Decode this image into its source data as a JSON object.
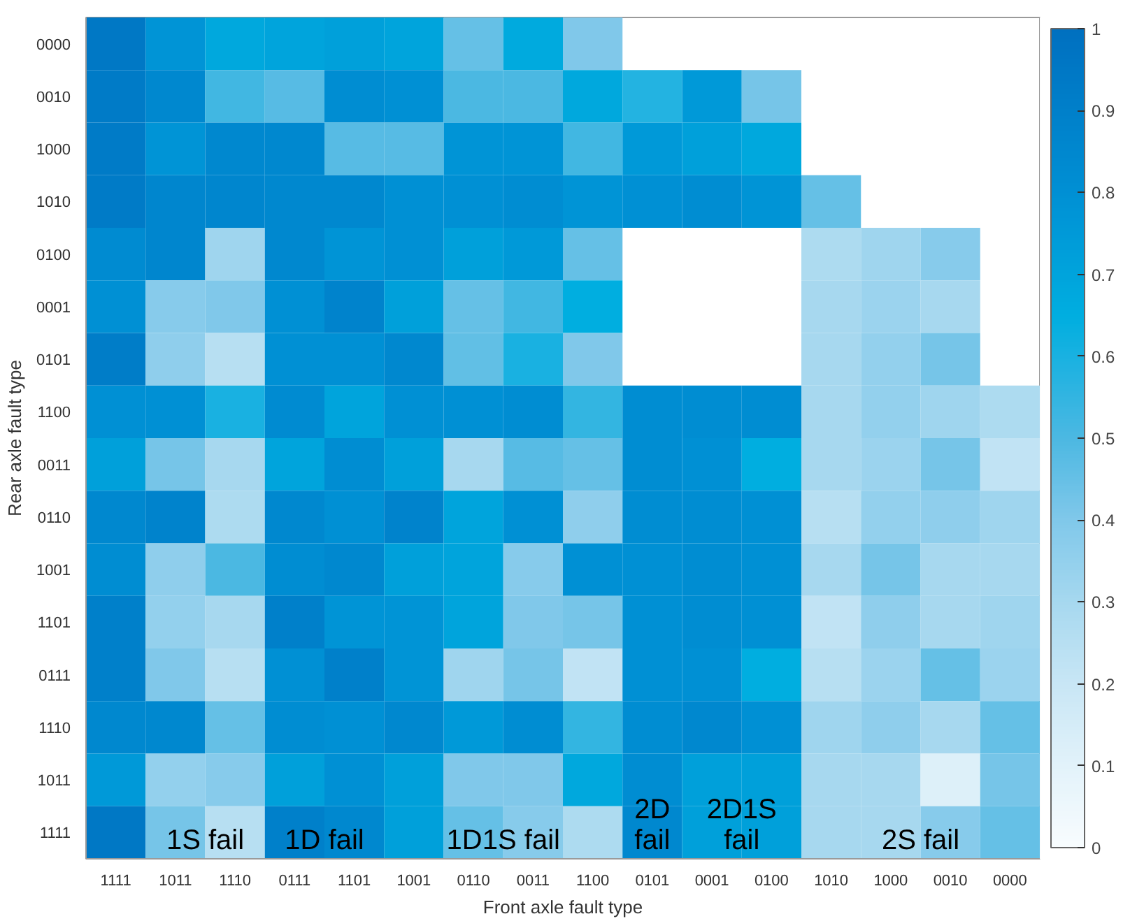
{
  "chart_data": {
    "type": "heatmap",
    "xlabel": "Front axle fault type",
    "ylabel": "Rear axle fault type",
    "categories": [
      "1111",
      "1011",
      "1110",
      "0111",
      "1101",
      "1001",
      "0110",
      "0011",
      "1100",
      "0101",
      "0001",
      "0100",
      "1010",
      "1000",
      "0010",
      "0000"
    ],
    "y_categories": [
      "0000",
      "0010",
      "1000",
      "1010",
      "0100",
      "0001",
      "0101",
      "1100",
      "0011",
      "0110",
      "1001",
      "1101",
      "0111",
      "1110",
      "1011",
      "1111"
    ],
    "cells": [
      [
        0.95,
        0.78,
        0.68,
        0.7,
        0.72,
        0.7,
        0.45,
        0.67,
        0.4,
        null,
        null,
        null,
        null,
        null,
        null,
        null
      ],
      [
        0.93,
        0.85,
        0.52,
        0.48,
        0.82,
        0.8,
        0.5,
        0.5,
        0.68,
        0.58,
        0.75,
        0.42,
        null,
        null,
        null,
        null
      ],
      [
        0.93,
        0.78,
        0.85,
        0.85,
        0.48,
        0.48,
        0.78,
        0.78,
        0.52,
        0.75,
        0.72,
        0.68,
        null,
        null,
        null,
        null
      ],
      [
        0.93,
        0.86,
        0.86,
        0.85,
        0.85,
        0.8,
        0.8,
        0.82,
        0.78,
        0.8,
        0.82,
        0.78,
        0.45,
        null,
        null,
        null
      ],
      [
        0.83,
        0.86,
        0.32,
        0.85,
        0.78,
        0.8,
        0.72,
        0.75,
        0.45,
        null,
        null,
        null,
        0.28,
        0.32,
        0.38,
        null
      ],
      [
        0.8,
        0.38,
        0.4,
        0.8,
        0.88,
        0.72,
        0.45,
        0.52,
        0.65,
        null,
        null,
        null,
        0.3,
        0.33,
        0.3,
        null
      ],
      [
        0.92,
        0.36,
        0.25,
        0.8,
        0.8,
        0.85,
        0.46,
        0.6,
        0.4,
        null,
        null,
        null,
        0.3,
        0.35,
        0.42,
        null
      ],
      [
        0.8,
        0.8,
        0.6,
        0.83,
        0.7,
        0.8,
        0.8,
        0.82,
        0.55,
        0.82,
        0.82,
        0.82,
        0.3,
        0.35,
        0.32,
        0.28
      ],
      [
        0.72,
        0.42,
        0.3,
        0.7,
        0.82,
        0.72,
        0.3,
        0.48,
        0.45,
        0.82,
        0.8,
        0.65,
        0.3,
        0.33,
        0.42,
        0.22
      ],
      [
        0.85,
        0.88,
        0.28,
        0.85,
        0.8,
        0.88,
        0.7,
        0.8,
        0.36,
        0.82,
        0.82,
        0.8,
        0.25,
        0.35,
        0.36,
        0.32
      ],
      [
        0.82,
        0.36,
        0.5,
        0.82,
        0.85,
        0.72,
        0.7,
        0.38,
        0.8,
        0.8,
        0.82,
        0.8,
        0.3,
        0.42,
        0.3,
        0.3
      ],
      [
        0.9,
        0.35,
        0.3,
        0.9,
        0.78,
        0.78,
        0.7,
        0.4,
        0.42,
        0.8,
        0.82,
        0.8,
        0.22,
        0.36,
        0.3,
        0.32
      ],
      [
        0.9,
        0.4,
        0.25,
        0.8,
        0.9,
        0.78,
        0.32,
        0.42,
        0.22,
        0.8,
        0.8,
        0.65,
        0.25,
        0.33,
        0.45,
        0.33
      ],
      [
        0.85,
        0.85,
        0.45,
        0.82,
        0.8,
        0.85,
        0.75,
        0.82,
        0.55,
        0.82,
        0.85,
        0.8,
        0.32,
        0.36,
        0.3,
        0.45
      ],
      [
        0.75,
        0.35,
        0.38,
        0.72,
        0.8,
        0.72,
        0.4,
        0.4,
        0.68,
        0.82,
        0.72,
        0.72,
        0.3,
        0.3,
        0.12,
        0.42
      ],
      [
        0.95,
        0.42,
        0.25,
        0.9,
        0.85,
        0.72,
        0.45,
        0.38,
        0.28,
        0.85,
        0.72,
        0.72,
        0.3,
        0.3,
        0.38,
        0.45
      ]
    ],
    "clim": [
      0,
      1
    ],
    "cticks": [
      0,
      0.1,
      0.2,
      0.3,
      0.4,
      0.5,
      0.6,
      0.7,
      0.8,
      0.9,
      1
    ],
    "annotations": [
      "1S fail",
      "1D fail",
      "1D1S fail",
      "2D fail",
      "2D1S fail",
      "2S fail"
    ]
  }
}
